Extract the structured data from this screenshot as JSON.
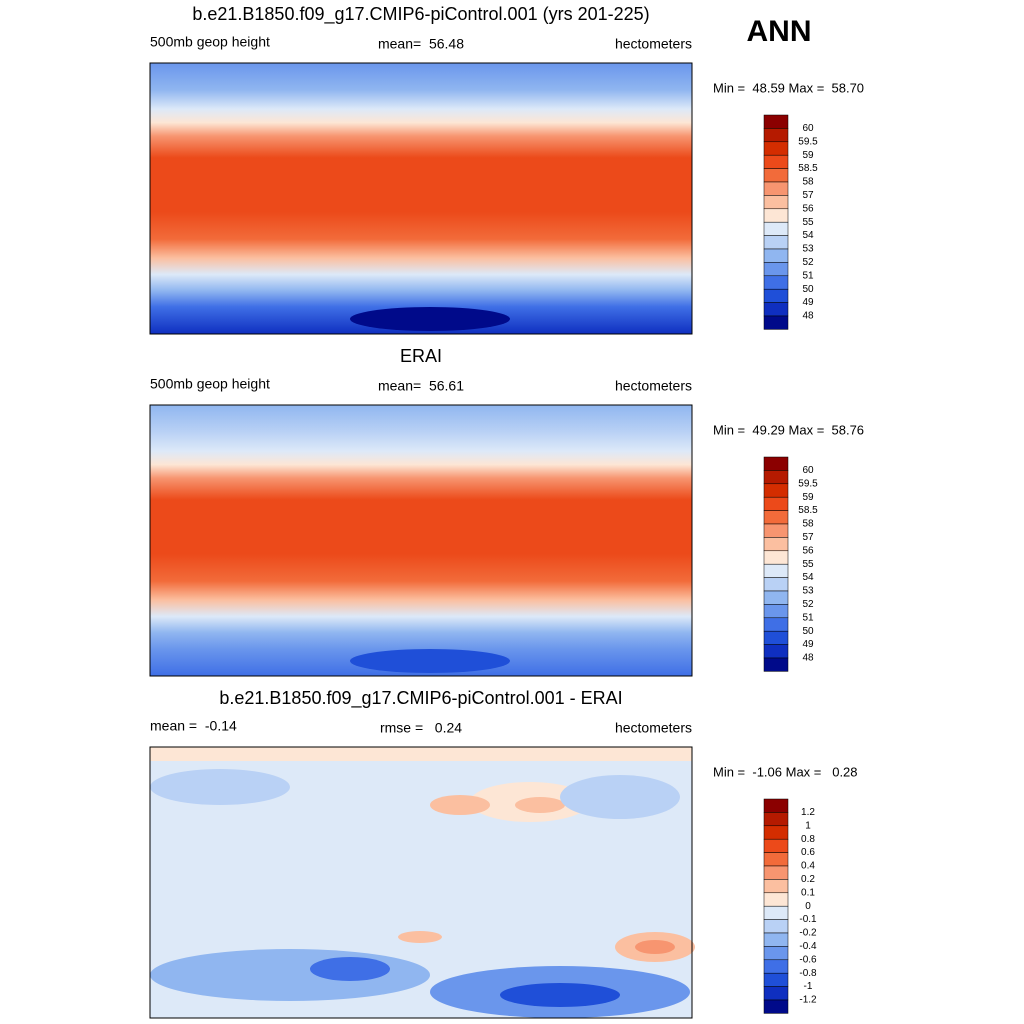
{
  "title": "ANN",
  "panels": [
    {
      "title": "b.e21.B1850.f09_g17.CMIP6-piControl.001 (yrs 201-225)",
      "left": "500mb geop height",
      "center": "mean=  56.48",
      "right": "hectometers",
      "range": "Min =  48.59 Max =  58.70",
      "colorbar": {
        "labels": [
          60,
          59.5,
          59,
          58.5,
          58,
          57,
          56,
          55,
          54,
          53,
          52,
          51,
          50,
          49,
          48
        ],
        "colors": [
          "#8b0000",
          "#b51a00",
          "#d42d00",
          "#ec4a1a",
          "#f26b3a",
          "#f79570",
          "#fbbfa0",
          "#fde6d5",
          "#dde9f8",
          "#b9d1f5",
          "#90b6f0",
          "#6a96ec",
          "#3f6fe6",
          "#1f4fd8",
          "#0f2fc0",
          "#000a8a"
        ]
      }
    },
    {
      "title": "ERAI",
      "left": "500mb geop height",
      "center": "mean=  56.61",
      "right": "hectometers",
      "range": "Min =  49.29 Max =  58.76",
      "colorbar": {
        "labels": [
          60,
          59.5,
          59,
          58.5,
          58,
          57,
          56,
          55,
          54,
          53,
          52,
          51,
          50,
          49,
          48
        ],
        "colors": [
          "#8b0000",
          "#b51a00",
          "#d42d00",
          "#ec4a1a",
          "#f26b3a",
          "#f79570",
          "#fbbfa0",
          "#fde6d5",
          "#dde9f8",
          "#b9d1f5",
          "#90b6f0",
          "#6a96ec",
          "#3f6fe6",
          "#1f4fd8",
          "#0f2fc0",
          "#000a8a"
        ]
      }
    },
    {
      "title": "b.e21.B1850.f09_g17.CMIP6-piControl.001 - ERAI",
      "left": "mean =  -0.14",
      "center": "rmse =   0.24",
      "right": "hectometers",
      "range": "Min =  -1.06 Max =   0.28",
      "colorbar": {
        "labels": [
          1.2,
          1,
          0.8,
          0.6,
          0.4,
          0.2,
          0.1,
          0,
          -0.1,
          -0.2,
          -0.4,
          -0.6,
          -0.8,
          -1,
          -1.2
        ],
        "colors": [
          "#8b0000",
          "#b51a00",
          "#d42d00",
          "#ec4a1a",
          "#f26b3a",
          "#f79570",
          "#fbbfa0",
          "#fde6d5",
          "#dde9f8",
          "#b9d1f5",
          "#90b6f0",
          "#6a96ec",
          "#3f6fe6",
          "#1f4fd8",
          "#0f2fc0",
          "#000a8a"
        ]
      }
    }
  ]
}
